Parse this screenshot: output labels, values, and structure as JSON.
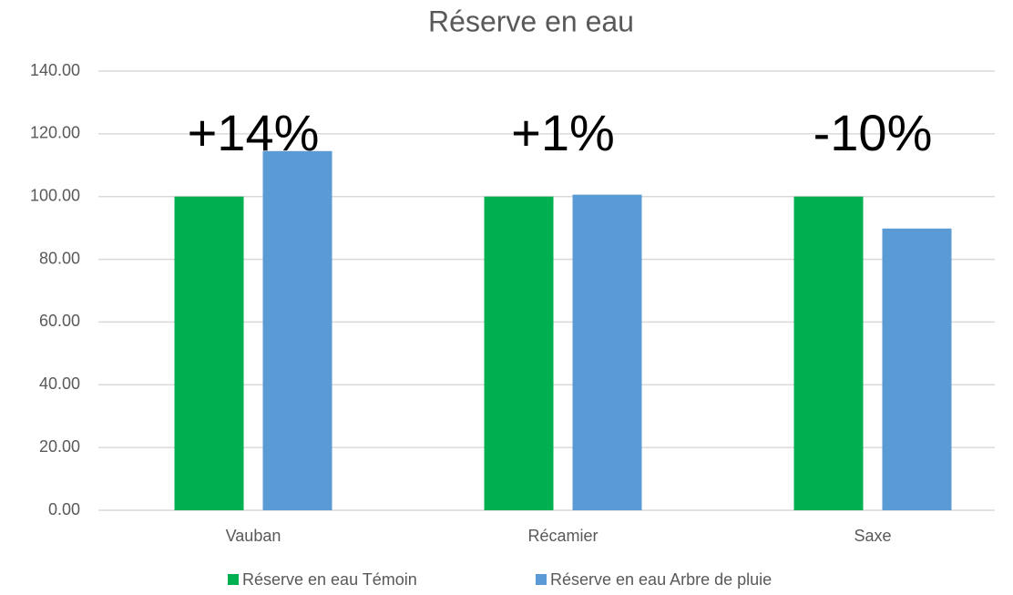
{
  "chart_data": {
    "type": "bar",
    "title": "Réserve en eau",
    "categories": [
      "Vauban",
      "Récamier",
      "Saxe"
    ],
    "series": [
      {
        "name": "Réserve en eau Témoin",
        "color": "#00b050",
        "values": [
          100,
          100,
          100
        ]
      },
      {
        "name": "Réserve en eau Arbre de pluie",
        "color": "#5b9bd5",
        "values": [
          114.5,
          100.6,
          89.8
        ]
      }
    ],
    "annotations": [
      "+14%",
      "+1%",
      "-10%"
    ],
    "ylim": [
      0,
      140
    ],
    "yticks": [
      {
        "value": 0,
        "label": "0.00"
      },
      {
        "value": 20,
        "label": "20.00"
      },
      {
        "value": 40,
        "label": "40.00"
      },
      {
        "value": 60,
        "label": "60.00"
      },
      {
        "value": 80,
        "label": "80.00"
      },
      {
        "value": 100,
        "label": "100.00"
      },
      {
        "value": 120,
        "label": "120.00"
      },
      {
        "value": 140,
        "label": "140.00"
      }
    ],
    "grid": true,
    "legend": "bottom"
  }
}
